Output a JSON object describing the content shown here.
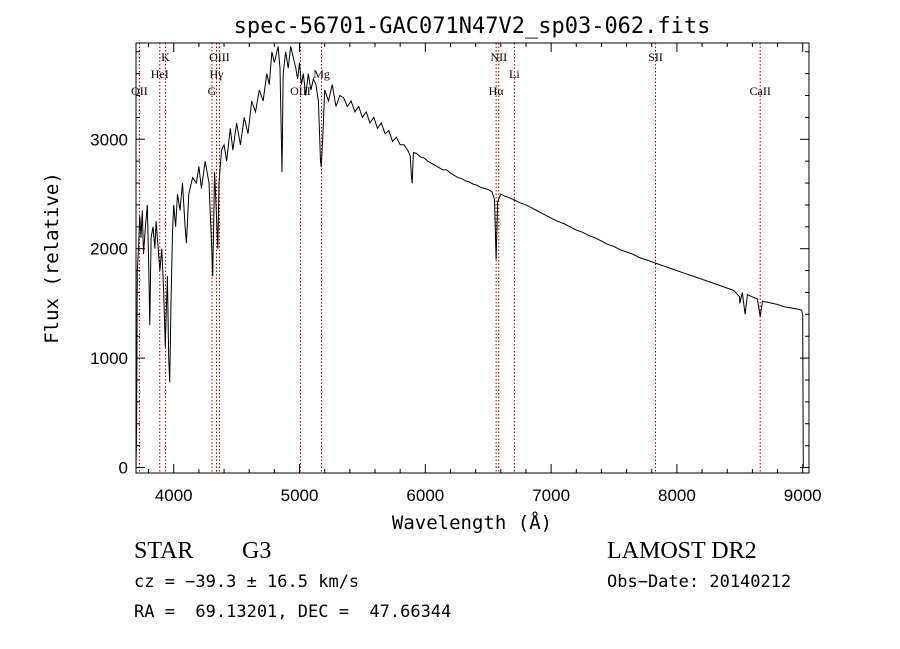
{
  "chart_data": {
    "type": "line",
    "title": "spec-56701-GAC071N47V2_sp03-062.fits",
    "xlabel": "Wavelength (Å)",
    "ylabel": "Flux (relative)",
    "xlim": [
      3700,
      9050
    ],
    "ylim": [
      -50,
      3880
    ],
    "x_ticks": [
      4000,
      5000,
      6000,
      7000,
      8000,
      9000
    ],
    "y_ticks": [
      0,
      1000,
      2000,
      3000
    ],
    "x_tick_labels": [
      "4000",
      "5000",
      "6000",
      "7000",
      "8000",
      "9000"
    ],
    "y_tick_labels": [
      "0",
      "1000",
      "2000",
      "3000"
    ],
    "line_color": "#000000",
    "marker_color": "#8b0000",
    "series": [
      {
        "points": [
          [
            3700,
            0
          ],
          [
            3705,
            300
          ],
          [
            3710,
            1800
          ],
          [
            3720,
            2000
          ],
          [
            3730,
            2300
          ],
          [
            3740,
            2100
          ],
          [
            3750,
            2350
          ],
          [
            3760,
            1950
          ],
          [
            3775,
            2200
          ],
          [
            3790,
            2400
          ],
          [
            3800,
            1900
          ],
          [
            3810,
            1300
          ],
          [
            3820,
            2100
          ],
          [
            3835,
            2200
          ],
          [
            3850,
            2000
          ],
          [
            3860,
            2250
          ],
          [
            3880,
            1950
          ],
          [
            3890,
            1800
          ],
          [
            3905,
            2000
          ],
          [
            3920,
            1600
          ],
          [
            3933,
            1100
          ],
          [
            3940,
            1400
          ],
          [
            3950,
            1750
          ],
          [
            3960,
            1000
          ],
          [
            3968,
            780
          ],
          [
            3978,
            1500
          ],
          [
            3990,
            2150
          ],
          [
            4000,
            2400
          ],
          [
            4015,
            2200
          ],
          [
            4030,
            2500
          ],
          [
            4050,
            2350
          ],
          [
            4070,
            2600
          ],
          [
            4090,
            2200
          ],
          [
            4101,
            2050
          ],
          [
            4120,
            2500
          ],
          [
            4150,
            2650
          ],
          [
            4180,
            2600
          ],
          [
            4200,
            2750
          ],
          [
            4220,
            2550
          ],
          [
            4250,
            2800
          ],
          [
            4280,
            2600
          ],
          [
            4300,
            2050
          ],
          [
            4310,
            1750
          ],
          [
            4325,
            2700
          ],
          [
            4340,
            2300
          ],
          [
            4350,
            2000
          ],
          [
            4360,
            2600
          ],
          [
            4380,
            2900
          ],
          [
            4400,
            2950
          ],
          [
            4420,
            2800
          ],
          [
            4450,
            3100
          ],
          [
            4470,
            2900
          ],
          [
            4500,
            3150
          ],
          [
            4530,
            2950
          ],
          [
            4560,
            3200
          ],
          [
            4590,
            3050
          ],
          [
            4620,
            3350
          ],
          [
            4650,
            3250
          ],
          [
            4680,
            3450
          ],
          [
            4710,
            3350
          ],
          [
            4740,
            3600
          ],
          [
            4760,
            3500
          ],
          [
            4780,
            3800
          ],
          [
            4800,
            3700
          ],
          [
            4830,
            3850
          ],
          [
            4845,
            3650
          ],
          [
            4861,
            2700
          ],
          [
            4870,
            3600
          ],
          [
            4890,
            3800
          ],
          [
            4910,
            3650
          ],
          [
            4930,
            3850
          ],
          [
            4950,
            3750
          ],
          [
            4970,
            3650
          ],
          [
            4985,
            3550
          ],
          [
            5000,
            3700
          ],
          [
            5015,
            3500
          ],
          [
            5030,
            3600
          ],
          [
            5050,
            3400
          ],
          [
            5070,
            3600
          ],
          [
            5090,
            3450
          ],
          [
            5110,
            3550
          ],
          [
            5130,
            3500
          ],
          [
            5150,
            3350
          ],
          [
            5167,
            2800
          ],
          [
            5172,
            2750
          ],
          [
            5184,
            3000
          ],
          [
            5200,
            3450
          ],
          [
            5230,
            3350
          ],
          [
            5260,
            3500
          ],
          [
            5290,
            3300
          ],
          [
            5320,
            3400
          ],
          [
            5350,
            3380
          ],
          [
            5380,
            3300
          ],
          [
            5410,
            3350
          ],
          [
            5440,
            3250
          ],
          [
            5470,
            3300
          ],
          [
            5500,
            3200
          ],
          [
            5530,
            3250
          ],
          [
            5560,
            3150
          ],
          [
            5590,
            3200
          ],
          [
            5620,
            3100
          ],
          [
            5650,
            3150
          ],
          [
            5680,
            3050
          ],
          [
            5710,
            3080
          ],
          [
            5740,
            2980
          ],
          [
            5770,
            3020
          ],
          [
            5800,
            2950
          ],
          [
            5830,
            2950
          ],
          [
            5860,
            2900
          ],
          [
            5880,
            2850
          ],
          [
            5890,
            2650
          ],
          [
            5896,
            2600
          ],
          [
            5905,
            2880
          ],
          [
            5930,
            2870
          ],
          [
            5960,
            2840
          ],
          [
            5990,
            2830
          ],
          [
            6020,
            2800
          ],
          [
            6050,
            2780
          ],
          [
            6080,
            2760
          ],
          [
            6110,
            2740
          ],
          [
            6140,
            2720
          ],
          [
            6170,
            2720
          ],
          [
            6200,
            2690
          ],
          [
            6230,
            2670
          ],
          [
            6260,
            2650
          ],
          [
            6290,
            2640
          ],
          [
            6320,
            2620
          ],
          [
            6350,
            2610
          ],
          [
            6380,
            2590
          ],
          [
            6410,
            2580
          ],
          [
            6440,
            2560
          ],
          [
            6470,
            2550
          ],
          [
            6500,
            2540
          ],
          [
            6530,
            2520
          ],
          [
            6550,
            2450
          ],
          [
            6563,
            1900
          ],
          [
            6575,
            2430
          ],
          [
            6600,
            2500
          ],
          [
            6630,
            2480
          ],
          [
            6660,
            2470
          ],
          [
            6700,
            2450
          ],
          [
            6750,
            2420
          ],
          [
            6800,
            2400
          ],
          [
            6850,
            2370
          ],
          [
            6900,
            2340
          ],
          [
            6950,
            2310
          ],
          [
            7000,
            2280
          ],
          [
            7050,
            2250
          ],
          [
            7100,
            2230
          ],
          [
            7150,
            2200
          ],
          [
            7200,
            2170
          ],
          [
            7250,
            2150
          ],
          [
            7300,
            2120
          ],
          [
            7350,
            2100
          ],
          [
            7400,
            2070
          ],
          [
            7450,
            2040
          ],
          [
            7500,
            2020
          ],
          [
            7550,
            1990
          ],
          [
            7600,
            1970
          ],
          [
            7650,
            1950
          ],
          [
            7700,
            1920
          ],
          [
            7750,
            1900
          ],
          [
            7800,
            1880
          ],
          [
            7850,
            1860
          ],
          [
            7900,
            1840
          ],
          [
            7950,
            1820
          ],
          [
            8000,
            1800
          ],
          [
            8050,
            1780
          ],
          [
            8100,
            1760
          ],
          [
            8150,
            1740
          ],
          [
            8200,
            1720
          ],
          [
            8250,
            1700
          ],
          [
            8300,
            1680
          ],
          [
            8350,
            1660
          ],
          [
            8400,
            1640
          ],
          [
            8450,
            1620
          ],
          [
            8498,
            1560
          ],
          [
            8500,
            1500
          ],
          [
            8520,
            1600
          ],
          [
            8542,
            1400
          ],
          [
            8560,
            1580
          ],
          [
            8600,
            1560
          ],
          [
            8640,
            1540
          ],
          [
            8662,
            1380
          ],
          [
            8680,
            1520
          ],
          [
            8720,
            1510
          ],
          [
            8760,
            1500
          ],
          [
            8800,
            1490
          ],
          [
            8850,
            1470
          ],
          [
            8900,
            1460
          ],
          [
            8950,
            1450
          ],
          [
            8990,
            1440
          ],
          [
            9000,
            1400
          ],
          [
            9003,
            400
          ],
          [
            9005,
            0
          ]
        ]
      }
    ],
    "line_markers": [
      {
        "label": "OII",
        "x": 3727,
        "row": 3
      },
      {
        "label": "HeI",
        "x": 3889,
        "row": 2
      },
      {
        "label": "K",
        "x": 3934,
        "row": 1
      },
      {
        "label": "Hγ",
        "x": 4340,
        "row": 2
      },
      {
        "label": "OIII",
        "x": 4363,
        "row": 1
      },
      {
        "label": "G",
        "x": 4304,
        "row": 3
      },
      {
        "label": "OIII",
        "x": 5007,
        "row": 3
      },
      {
        "label": "Mg",
        "x": 5175,
        "row": 2
      },
      {
        "label": "NII",
        "x": 6584,
        "row": 1
      },
      {
        "label": "Hα",
        "x": 6563,
        "row": 3
      },
      {
        "label": "Li",
        "x": 6708,
        "row": 2
      },
      {
        "label": "SII",
        "x": 7830,
        "row": 1
      },
      {
        "label": "CaII",
        "x": 8662,
        "row": 3
      }
    ]
  },
  "info": {
    "object_class": "STAR",
    "subclass": "G3",
    "survey": "LAMOST DR2",
    "redshift": "cz = −39.3 ± 16.5 km/s",
    "obs_date": "Obs−Date: 20140212",
    "coords": "RA =  69.13201, DEC =  47.66344"
  }
}
